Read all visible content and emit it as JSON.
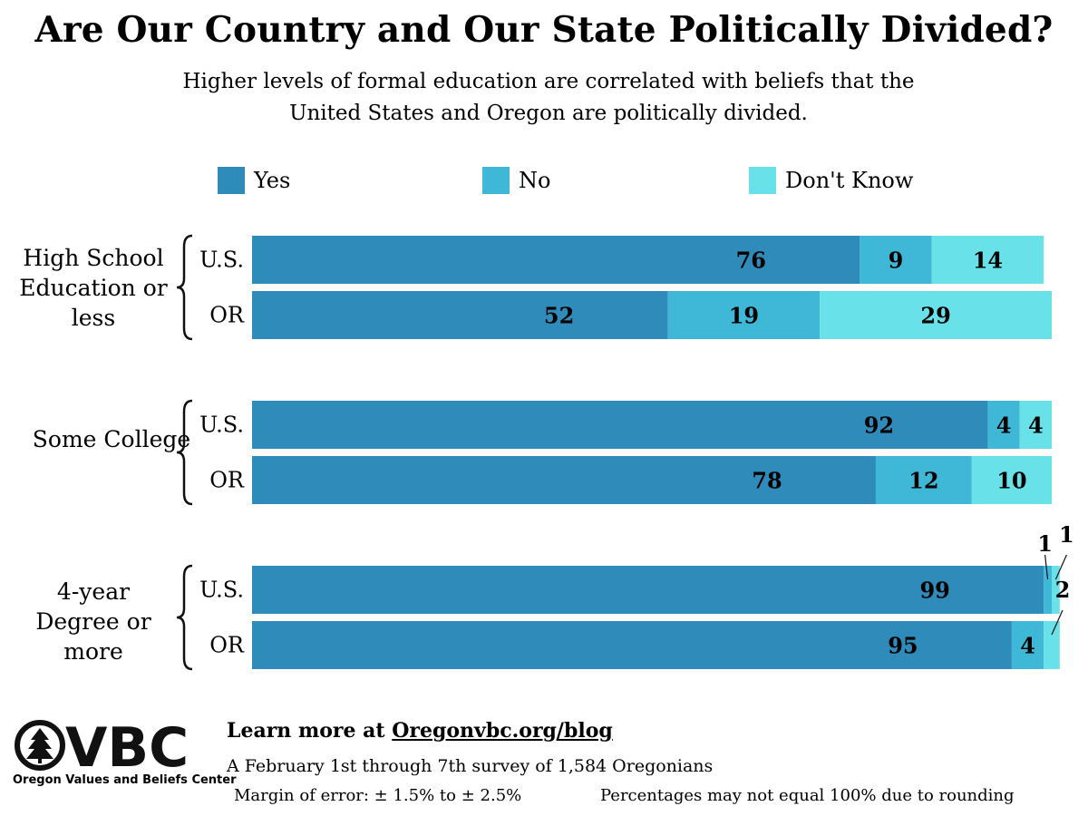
{
  "title": "Are Our Country and Our State Politically Divided?",
  "subtitle": "Higher levels of formal education are correlated with beliefs that the United States and Oregon are politically divided.",
  "colors": {
    "yes": "#2e8bba",
    "no": "#3fb8d8",
    "dont_know": "#68e2e8"
  },
  "chart_data": {
    "type": "bar",
    "orientation": "horizontal",
    "stacked": true,
    "title": "Are Our Country and Our State Politically Divided?",
    "subtitle": "Higher levels of formal education are correlated with beliefs that the United States and Oregon are politically divided.",
    "legend": [
      "Yes",
      "No",
      "Don't Know"
    ],
    "legend_position": "top",
    "groups": [
      {
        "label": "High School Education or less",
        "rows": [
          {
            "label": "U.S.",
            "values": [
              76,
              9,
              14
            ]
          },
          {
            "label": "OR",
            "values": [
              52,
              19,
              29
            ]
          }
        ]
      },
      {
        "label": "Some College",
        "rows": [
          {
            "label": "U.S.",
            "values": [
              92,
              4,
              4
            ]
          },
          {
            "label": "OR",
            "values": [
              78,
              12,
              10
            ]
          }
        ]
      },
      {
        "label": "4-year Degree or more",
        "rows": [
          {
            "label": "U.S.",
            "values": [
              99,
              1,
              1
            ]
          },
          {
            "label": "OR",
            "values": [
              95,
              4,
              2
            ]
          }
        ]
      }
    ],
    "series": [
      {
        "name": "Yes",
        "values": [
          76,
          52,
          92,
          78,
          99,
          95
        ]
      },
      {
        "name": "No",
        "values": [
          9,
          19,
          4,
          12,
          1,
          4
        ]
      },
      {
        "name": "Don't Know",
        "values": [
          14,
          29,
          4,
          10,
          1,
          2
        ]
      }
    ]
  },
  "footer": {
    "logo_name": "OVBC",
    "logo_caption": "Oregon Values and Beliefs Center",
    "learn_more_prefix": "Learn more at ",
    "learn_more_url": "Oregonvbc.org/blog",
    "survey": "A February 1st through 7th survey of 1,584 Oregonians",
    "margin_of_error": "Margin of error: ± 1.5% to ± 2.5%",
    "rounding_note": "Percentages may not equal  100% due to rounding"
  }
}
